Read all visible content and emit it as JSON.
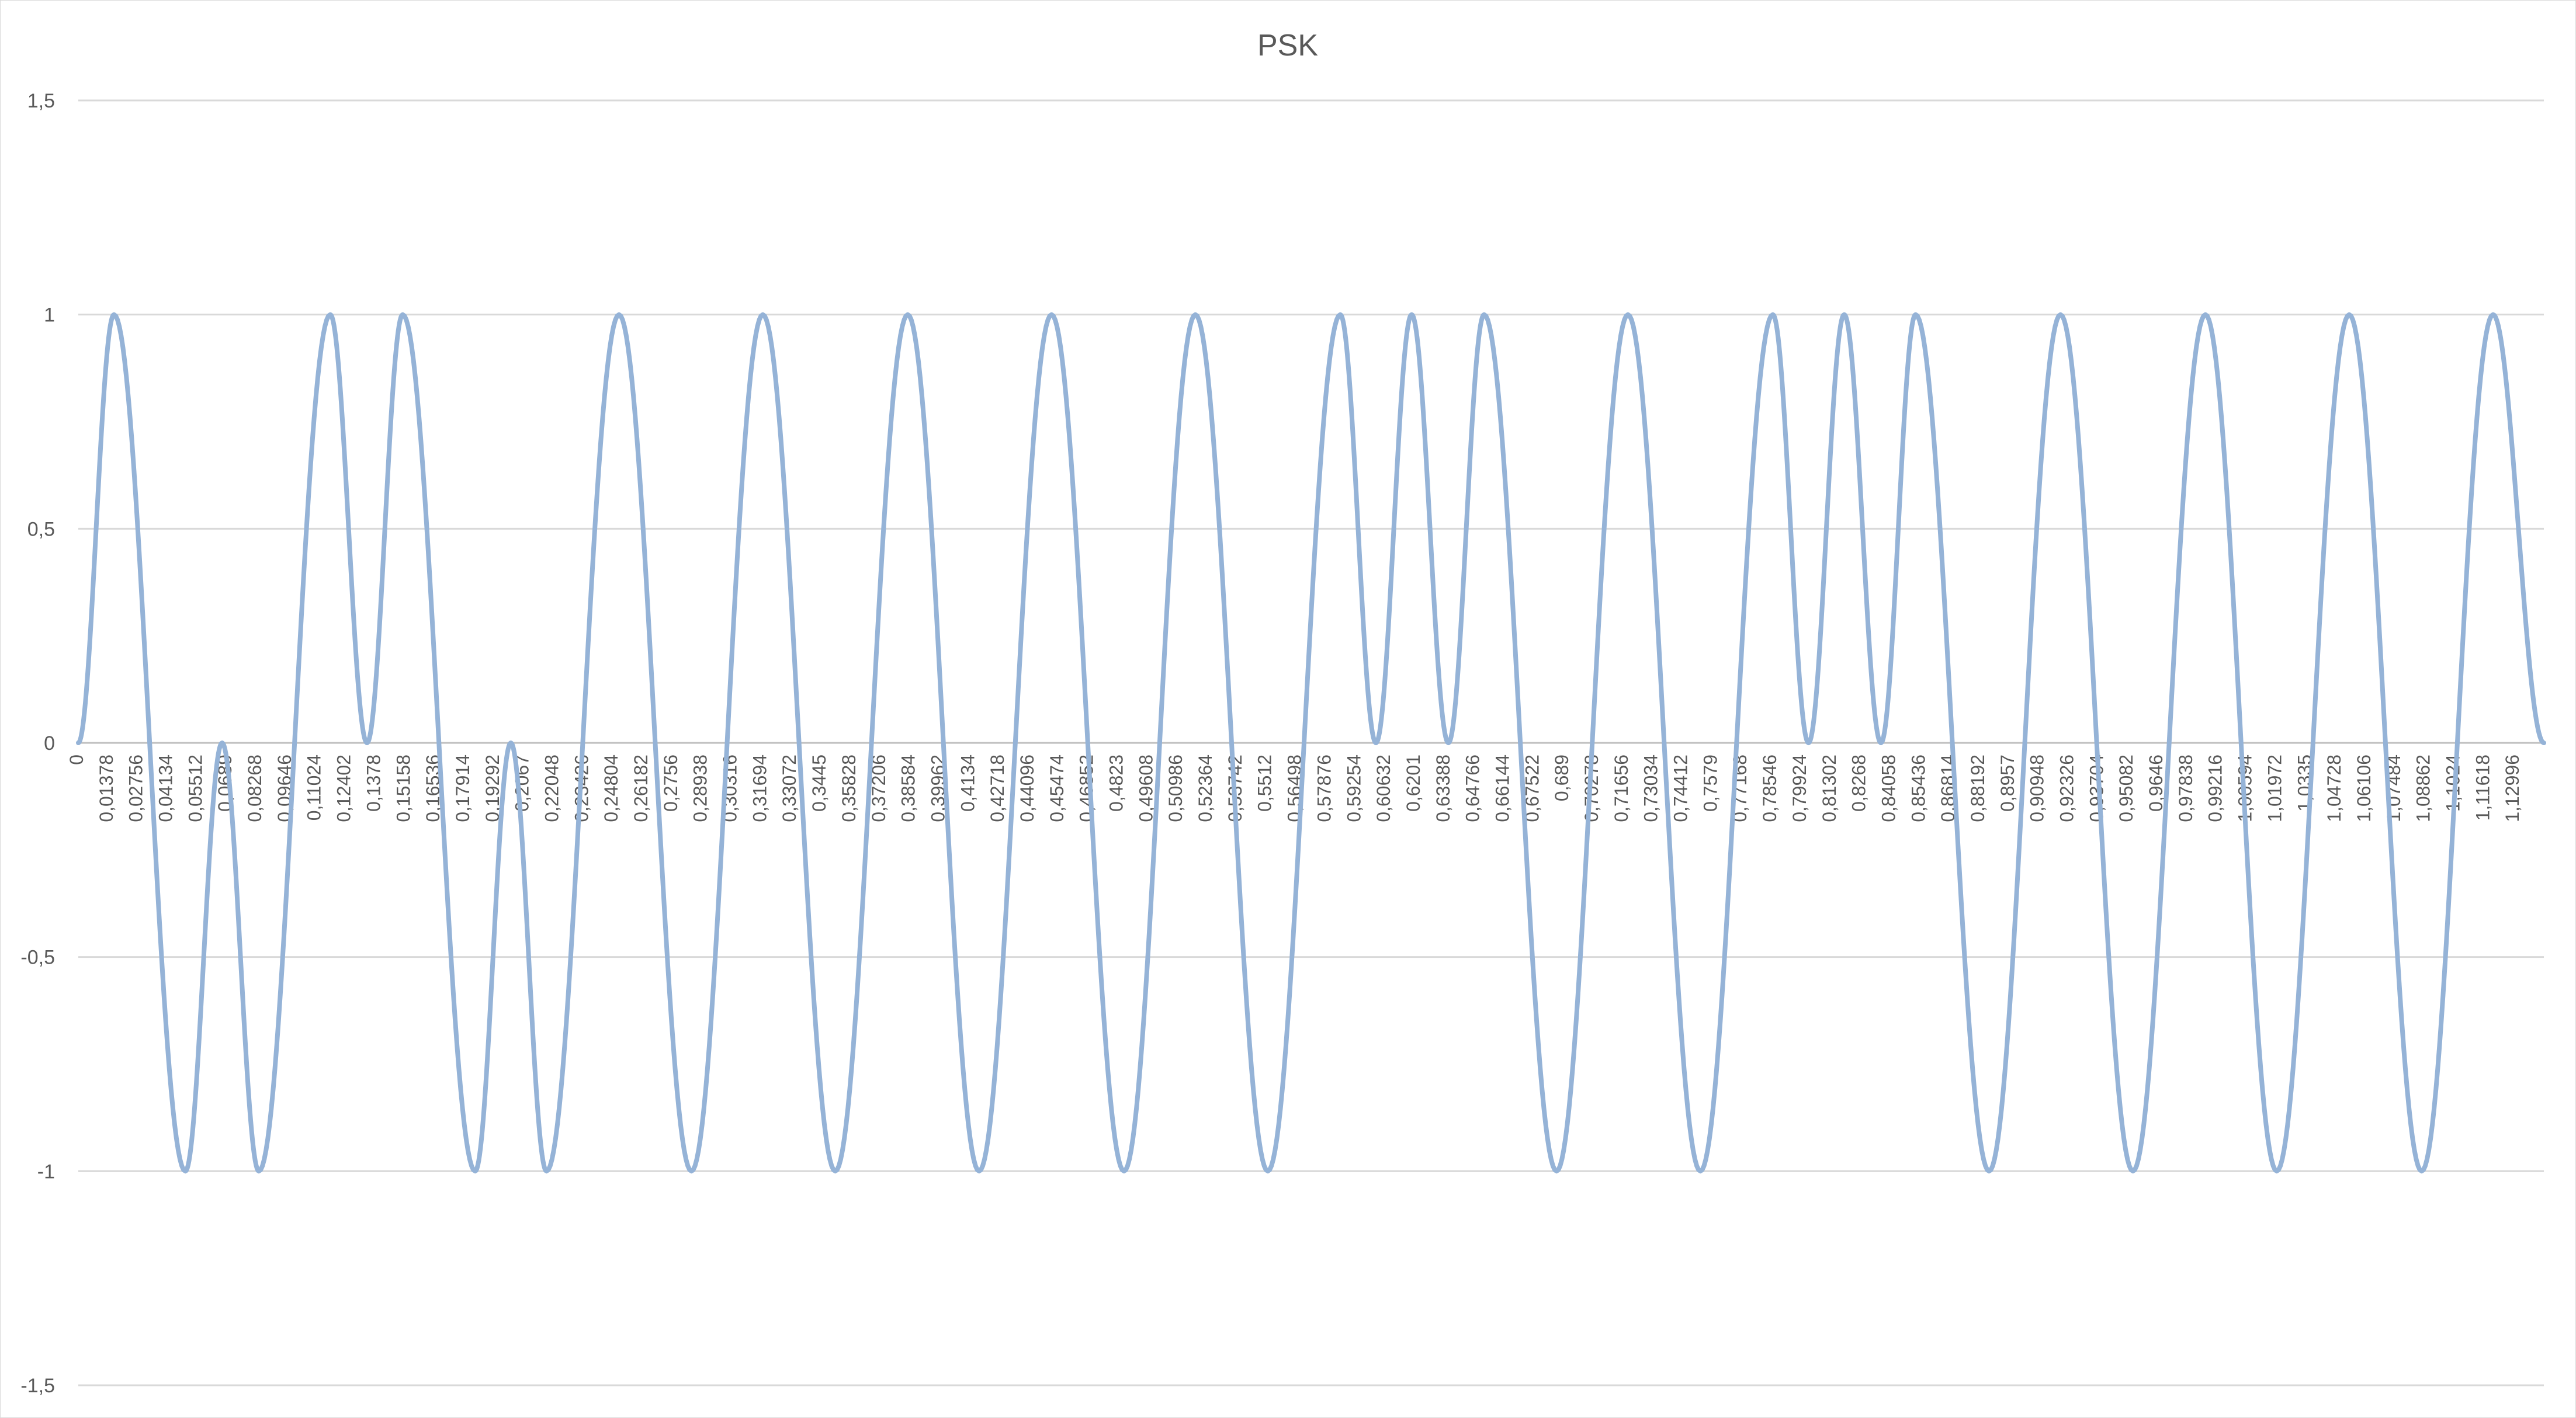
{
  "chart_data": {
    "type": "line",
    "title": "PSK",
    "xlabel": "",
    "ylabel": "",
    "ylim": [
      -1.5,
      1.5
    ],
    "yticks": [
      "-1,5",
      "-1",
      "-0,5",
      "0",
      "0,5",
      "1",
      "1,5"
    ],
    "ytick_values": [
      -1.5,
      -1,
      -0.5,
      0,
      0.5,
      1,
      1.5
    ],
    "x_categories": [
      "0",
      "0,01378",
      "0,02756",
      "0,04134",
      "0,05512",
      "0,0689",
      "0,08268",
      "0,09646",
      "0,11024",
      "0,12402",
      "0,1378",
      "0,15158",
      "0,16536",
      "0,17914",
      "0,19292",
      "0,2067",
      "0,22048",
      "0,23426",
      "0,24804",
      "0,26182",
      "0,2756",
      "0,28938",
      "0,30316",
      "0,31694",
      "0,33072",
      "0,3445",
      "0,35828",
      "0,37206",
      "0,38584",
      "0,39962",
      "0,4134",
      "0,42718",
      "0,44096",
      "0,45474",
      "0,46852",
      "0,4823",
      "0,49608",
      "0,50986",
      "0,52364",
      "0,53742",
      "0,5512",
      "0,56498",
      "0,57876",
      "0,59254",
      "0,60632",
      "0,6201",
      "0,63388",
      "0,64766",
      "0,66144",
      "0,67522",
      "0,689",
      "0,70278",
      "0,71656",
      "0,73034",
      "0,74412",
      "0,7579",
      "0,77168",
      "0,78546",
      "0,79924",
      "0,81302",
      "0,8268",
      "0,84058",
      "0,85436",
      "0,86814",
      "0,88192",
      "0,8957",
      "0,90948",
      "0,92326",
      "0,93704",
      "0,95082",
      "0,9646",
      "0,97838",
      "0,99216",
      "1,00594",
      "1,01972",
      "1,0335",
      "1,04728",
      "1,06106",
      "1,07484",
      "1,08862",
      "1,1024",
      "1,11618",
      "1,12996"
    ],
    "x_range": [
      0,
      1.14
    ],
    "grid": true,
    "legend": "none",
    "series": [
      {
        "color": "#95B3D7",
        "points": [
          [
            0,
            0
          ],
          [
            0.0165,
            1
          ],
          [
            0.0495,
            -1
          ],
          [
            0.0665,
            0
          ],
          [
            0.0835,
            -1
          ],
          [
            0.1165,
            1
          ],
          [
            0.1335,
            0
          ],
          [
            0.15,
            1
          ],
          [
            0.1835,
            -1
          ],
          [
            0.2,
            0
          ],
          [
            0.2165,
            -1
          ],
          [
            0.25,
            1
          ],
          [
            0.2835,
            -1
          ],
          [
            0.3165,
            1
          ],
          [
            0.35,
            -1
          ],
          [
            0.3835,
            1
          ],
          [
            0.4165,
            -1
          ],
          [
            0.45,
            1
          ],
          [
            0.4835,
            -1
          ],
          [
            0.5165,
            1
          ],
          [
            0.55,
            -1
          ],
          [
            0.5835,
            1
          ],
          [
            0.6,
            0
          ],
          [
            0.6165,
            1
          ],
          [
            0.6335,
            0
          ],
          [
            0.65,
            1
          ],
          [
            0.6835,
            -1
          ],
          [
            0.7165,
            1
          ],
          [
            0.75,
            -1
          ],
          [
            0.7835,
            1
          ],
          [
            0.8,
            0
          ],
          [
            0.8165,
            1
          ],
          [
            0.8335,
            0
          ],
          [
            0.8495,
            1
          ],
          [
            0.8835,
            -1
          ],
          [
            0.9165,
            1
          ],
          [
            0.95,
            -1
          ],
          [
            0.9835,
            1
          ],
          [
            1.0165,
            -1
          ],
          [
            1.05,
            1
          ],
          [
            1.0835,
            -1
          ],
          [
            1.1165,
            1
          ],
          [
            1.14,
            0
          ]
        ]
      }
    ]
  }
}
